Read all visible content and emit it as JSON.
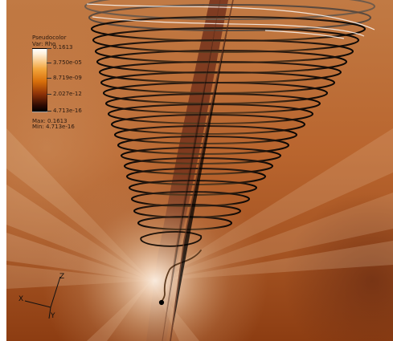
{
  "legend": {
    "title": "Pseudocolor",
    "variable": "Var: Rho",
    "ticks": [
      "0.1613",
      "3.750e-05",
      "8.719e-09",
      "2.027e-12",
      "4.713e-16"
    ],
    "max": "Max: 0.1613",
    "min": "Min: 4.713e-16"
  },
  "axes": {
    "x": "X",
    "y": "Y",
    "z": "Z"
  },
  "colors": {
    "background_dark": "#8b3b0d",
    "background_mid": "#b86a35",
    "background_light": "#f0d0ac",
    "streamline": "#0d0905",
    "streamline_highlight": "#ffffff"
  }
}
